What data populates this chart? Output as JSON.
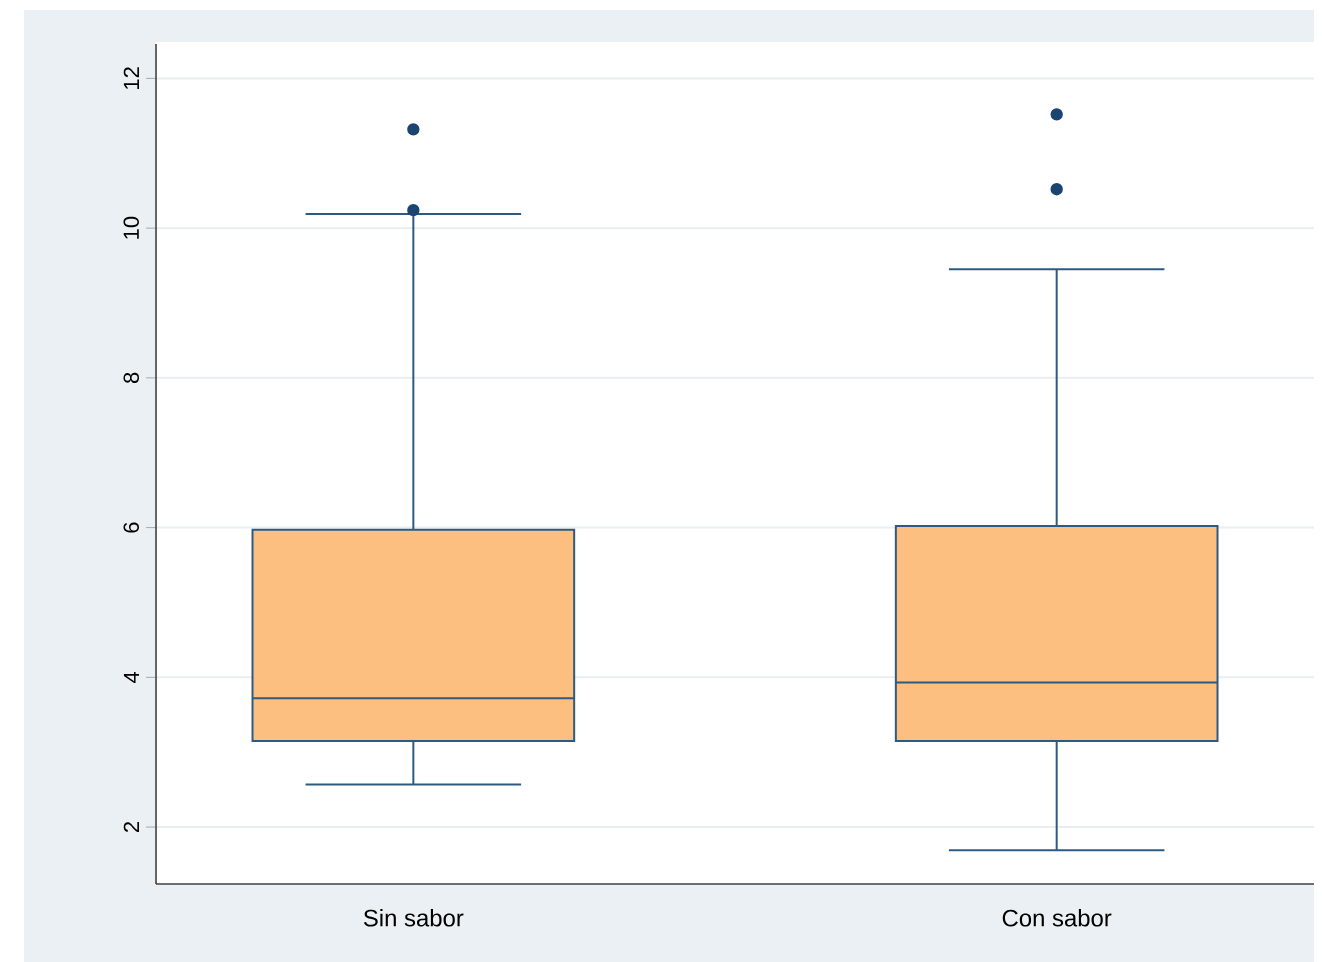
{
  "chart_data": {
    "type": "box",
    "categories": [
      "Sin sabor",
      "Con sabor"
    ],
    "series": [
      {
        "color": "#fdbf80",
        "boxes": [
          {
            "low": 2.57,
            "q1": 3.15,
            "median": 3.72,
            "q3": 5.97,
            "high": 10.19,
            "outliers": [
              11.32,
              10.24
            ]
          },
          {
            "low": 1.69,
            "q1": 3.15,
            "median": 3.93,
            "q3": 6.02,
            "high": 9.45,
            "outliers": [
              11.52,
              10.52
            ]
          }
        ]
      }
    ],
    "ylim": [
      1.24,
      12.46
    ],
    "yticks": [
      2,
      4,
      6,
      8,
      10,
      12
    ],
    "grid": "y"
  }
}
